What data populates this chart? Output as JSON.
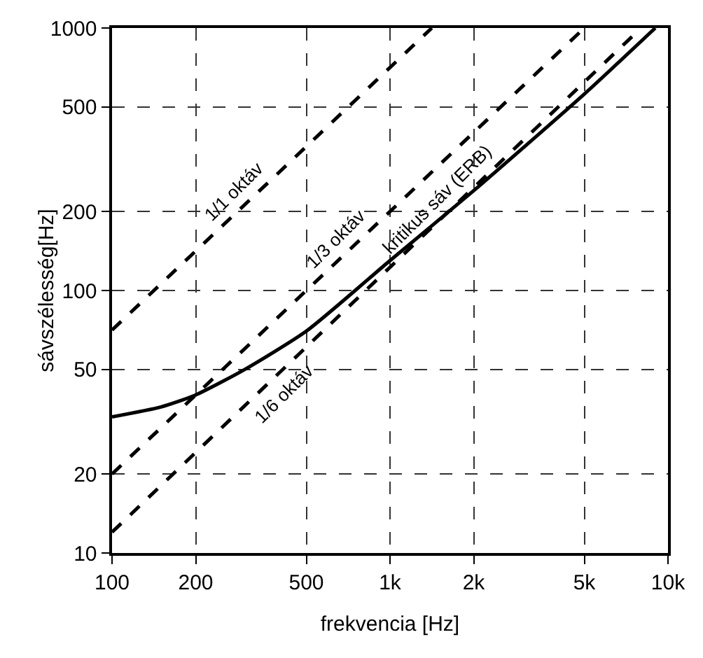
{
  "chart_data": {
    "type": "line",
    "xlabel": "frekvencia [Hz]",
    "ylabel": "sávszélesség[Hz]",
    "log": "xy",
    "grid": true,
    "legend": false,
    "xlim": [
      100,
      10000
    ],
    "xticks": [
      100,
      200,
      500,
      {
        "value": 1000,
        "label": "1k"
      },
      {
        "value": 2000,
        "label": "2k"
      },
      {
        "value": 5000,
        "label": "5k"
      },
      {
        "value": 10000,
        "label": "10k"
      }
    ],
    "ylim": [
      10,
      1000
    ],
    "yticks": [
      10,
      20,
      50,
      100,
      200,
      500,
      1000
    ],
    "series": [
      {
        "name": "1/1 oktáv",
        "color": "#000000",
        "line_style": "dashed",
        "x": [
          100,
          1414
        ],
        "values": [
          70.7,
          1000
        ]
      },
      {
        "name": "1/3 oktáv",
        "color": "#000000",
        "line_style": "dashed",
        "x": [
          100,
          5000
        ],
        "values": [
          20,
          1000
        ]
      },
      {
        "name": "1/6 oktáv",
        "color": "#000000",
        "line_style": "dashed",
        "x": [
          100,
          8000
        ],
        "values": [
          12,
          1000
        ]
      },
      {
        "name": "kritikus sáv (ERB)",
        "color": "#000000",
        "line_style": "solid",
        "x": [
          100,
          150,
          200,
          300,
          500,
          1000,
          2000,
          5000,
          9000
        ],
        "values": [
          33,
          36,
          40,
          50,
          70,
          130,
          240,
          560,
          1000
        ]
      }
    ]
  }
}
